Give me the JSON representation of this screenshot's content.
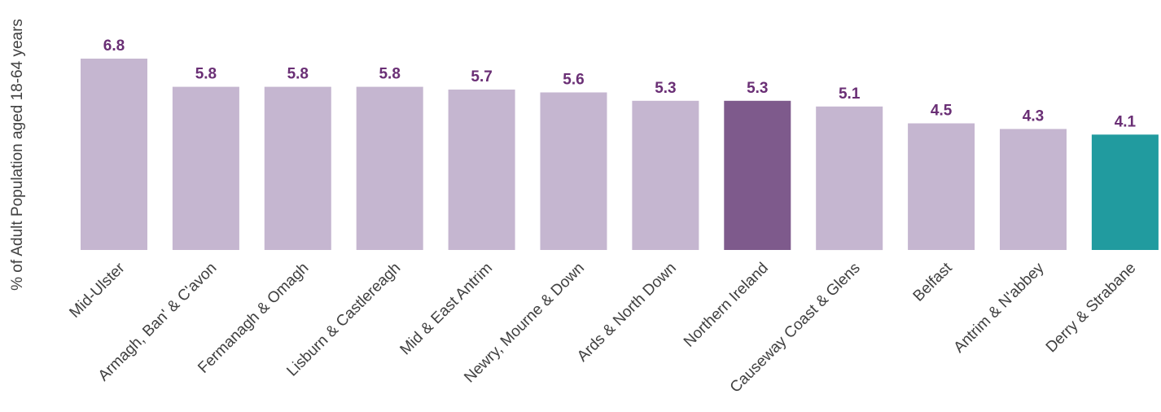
{
  "chart_data": {
    "type": "bar",
    "title": "",
    "xlabel": "",
    "ylabel": "% of Adult Population aged 18-64 years",
    "ylim": [
      0,
      6.8
    ],
    "grid": false,
    "categories": [
      "Mid-Ulster",
      "Armagh, Ban' & C'avon",
      "Fermanagh & Omagh",
      "Lisburn & Castlereagh",
      "Mid & East Antrim",
      "Newry, Mourne & Down",
      "Ards & North Down",
      "Northern Ireland",
      "Causeway Coast & Glens",
      "Belfast",
      "Antrim & N'abbey",
      "Derry & Strabane"
    ],
    "values": [
      6.8,
      5.8,
      5.8,
      5.8,
      5.7,
      5.6,
      5.3,
      5.3,
      5.1,
      4.5,
      4.3,
      4.1
    ],
    "data_labels": [
      "6.8",
      "5.8",
      "5.8",
      "5.8",
      "5.7",
      "5.6",
      "5.3",
      "5.3",
      "5.1",
      "4.5",
      "4.3",
      "4.1"
    ],
    "colors": {
      "default_bar": "#c5b6d0",
      "highlight_bar": "#7e5a8c",
      "accent_bar": "#219b9f",
      "data_label": "#6a2f75",
      "axis_text": "#404040",
      "tick_text": "#404040"
    },
    "highlight_category": "Northern Ireland",
    "accent_category": "Derry & Strabane"
  }
}
